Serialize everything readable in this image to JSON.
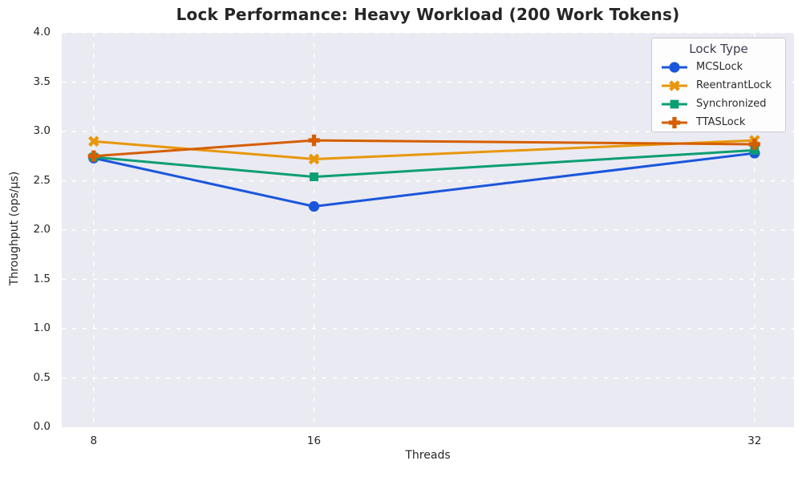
{
  "chart_data": {
    "type": "line",
    "title": "Lock Performance: Heavy Workload (200 Work Tokens)",
    "xlabel": "Threads",
    "ylabel": "Throughput (ops/μs)",
    "x": [
      8,
      16,
      32
    ],
    "series": [
      {
        "name": "MCSLock",
        "color": "#1a56db",
        "marker": "circle",
        "values": [
          2.73,
          2.24,
          2.78
        ]
      },
      {
        "name": "ReentrantLock",
        "color": "#e8970a",
        "marker": "x",
        "values": [
          2.9,
          2.72,
          2.91
        ]
      },
      {
        "name": "Synchronized",
        "color": "#0a9e73",
        "marker": "square",
        "values": [
          2.74,
          2.54,
          2.81
        ]
      },
      {
        "name": "TTASLock",
        "color": "#d55e00",
        "marker": "plus",
        "values": [
          2.75,
          2.91,
          2.87
        ]
      }
    ],
    "xlim": [
      6.84,
      33.43
    ],
    "ylim": [
      0.0,
      4.0
    ],
    "xticks": [
      8,
      16,
      32
    ],
    "yticks": [
      0.0,
      0.5,
      1.0,
      1.5,
      2.0,
      2.5,
      3.0,
      3.5,
      4.0
    ],
    "grid": true,
    "grid_style": "dashed",
    "legend_title": "Lock Type",
    "legend_position": "upper right",
    "plot_background": "#eaeaf2",
    "gridline_color": "#ffffff",
    "figure_background": "#ffffff",
    "title_color": "#262626",
    "tick_label_color": "#262626"
  }
}
